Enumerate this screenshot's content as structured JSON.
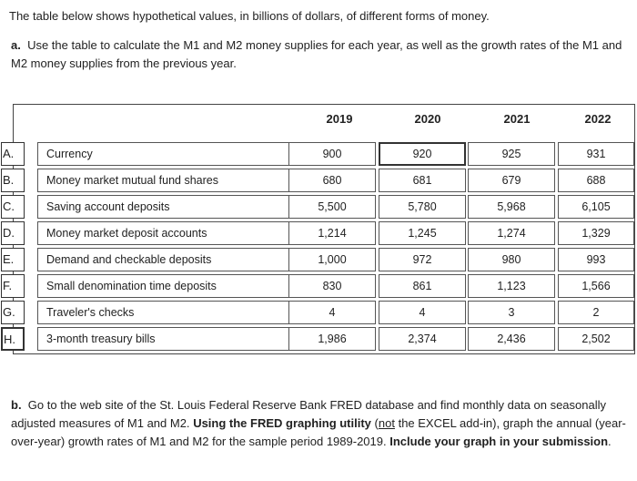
{
  "intro": "The table below shows hypothetical values, in billions of dollars, of different forms of money.",
  "question_a": {
    "label": "a.",
    "text": "Use the table to calculate the M1 and M2 money supplies for each year, as well as the growth rates of the M1 and M2 money supplies from the previous year."
  },
  "table": {
    "years": [
      "2019",
      "2020",
      "2021",
      "2022"
    ],
    "rows": [
      {
        "letter": "A.",
        "label": "Currency",
        "values": [
          "900",
          "920",
          "925",
          "931"
        ]
      },
      {
        "letter": "B.",
        "label": "Money market mutual fund shares",
        "values": [
          "680",
          "681",
          "679",
          "688"
        ]
      },
      {
        "letter": "C.",
        "label": "Saving account deposits",
        "values": [
          "5,500",
          "5,780",
          "5,968",
          "6,105"
        ]
      },
      {
        "letter": "D.",
        "label": "Money market deposit accounts",
        "values": [
          "1,214",
          "1,245",
          "1,274",
          "1,329"
        ]
      },
      {
        "letter": "E.",
        "label": "Demand and checkable deposits",
        "values": [
          "1,000",
          "972",
          "980",
          "993"
        ]
      },
      {
        "letter": "F.",
        "label": "Small denomination time deposits",
        "values": [
          "830",
          "861",
          "1,123",
          "1,566"
        ]
      },
      {
        "letter": "G.",
        "label": "Traveler's checks",
        "values": [
          "4",
          "4",
          "3",
          "2"
        ]
      },
      {
        "letter": "H.",
        "label": "3-month treasury bills",
        "values": [
          "1,986",
          "2,374",
          "2,436",
          "2,502"
        ]
      }
    ]
  },
  "question_b": {
    "label": "b.",
    "text_1": "Go to the web site of the St. Louis Federal Reserve Bank FRED database and find monthly data on seasonally adjusted measures of M1 and M2.",
    "bold_1": "Using the FRED graphing utility",
    "text_2_open": "(",
    "underline": "not",
    "text_2": "the EXCEL add-in), graph the annual (year-over-year) growth rates of M1 and M2 for the sample period 1989-2019.",
    "bold_2": "Include your graph in your submission",
    "text_3": "."
  }
}
